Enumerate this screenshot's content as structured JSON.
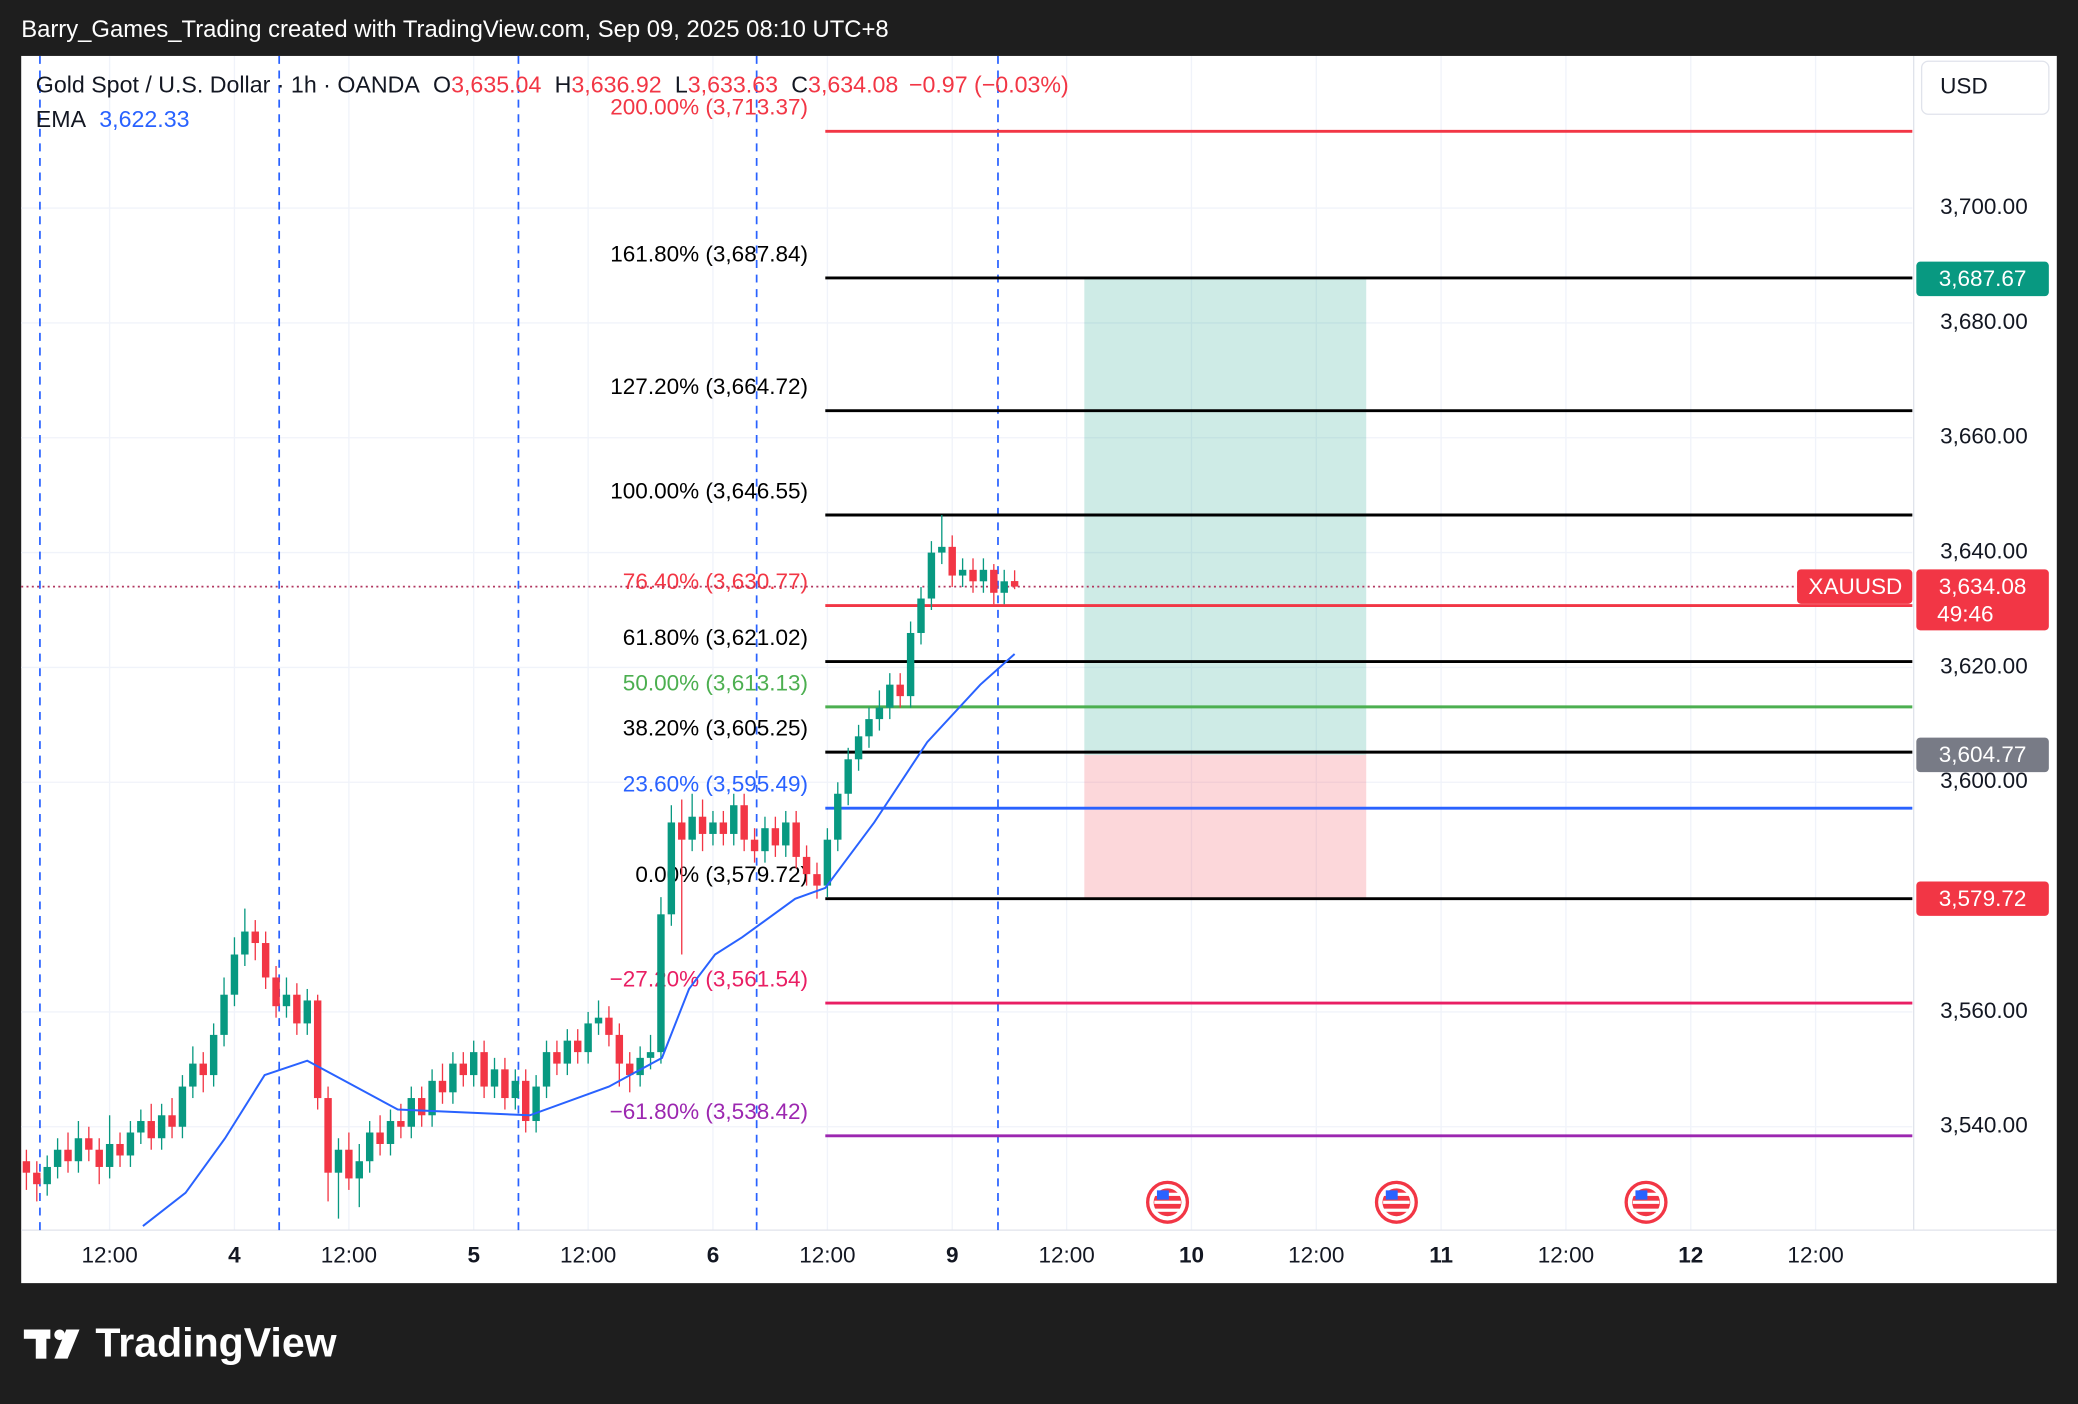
{
  "header": "Barry_Games_Trading created with TradingView.com, Sep 09, 2025 08:10 UTC+8",
  "footer": "TradingView",
  "chart_data": {
    "type": "candlestick",
    "currency": "USD",
    "legend": {
      "symbol": "Gold Spot / U.S. Dollar · 1h · OANDA",
      "fields": [
        {
          "key": "O",
          "value": "3,635.04"
        },
        {
          "key": "H",
          "value": "3,636.92"
        },
        {
          "key": "L",
          "value": "3,633.63"
        },
        {
          "key": "C",
          "value": "3,634.08"
        }
      ],
      "change": "−0.97 (−0.03%)",
      "ema_name": "EMA",
      "ema_value": "3,622.33"
    },
    "up_color": "#089981",
    "down_color": "#f23645",
    "open": [
      3534,
      3532,
      3530,
      3533,
      3536,
      3534,
      3538,
      3536,
      3533,
      3537,
      3535,
      3539,
      3541,
      3538,
      3542,
      3540,
      3547,
      3551,
      3549,
      3556,
      3563,
      3570,
      3574,
      3572,
      3566,
      3561,
      3563,
      3558,
      3562,
      3545,
      3532,
      3536,
      3531,
      3534,
      3539,
      3537,
      3541,
      3540,
      3545,
      3542,
      3548,
      3546,
      3551,
      3549,
      3553,
      3547,
      3550,
      3545,
      3548,
      3541,
      3547,
      3553,
      3551,
      3555,
      3553,
      3558,
      3559,
      3556,
      3551,
      3549,
      3552,
      3553,
      3577,
      3593,
      3590,
      3594,
      3591,
      3593,
      3591,
      3596,
      3590,
      3588,
      3592,
      3589,
      3593,
      3587,
      3584,
      3582,
      3590,
      3598,
      3604,
      3608,
      3611,
      3613,
      3617,
      3615,
      3626,
      3632,
      3640,
      3641,
      3636,
      3637,
      3635,
      3637,
      3633,
      3635.04
    ],
    "high": [
      3536,
      3534,
      3535,
      3538,
      3539,
      3541,
      3540,
      3538,
      3542,
      3539,
      3541,
      3543,
      3544,
      3544,
      3545,
      3549,
      3554,
      3553,
      3558,
      3566,
      3573,
      3578,
      3576,
      3574,
      3568,
      3566,
      3565,
      3564,
      3563,
      3547,
      3538,
      3539,
      3537,
      3541,
      3542,
      3543,
      3544,
      3547,
      3547,
      3550,
      3551,
      3553,
      3553,
      3555,
      3555,
      3552,
      3552,
      3550,
      3550,
      3549,
      3555,
      3555,
      3557,
      3557,
      3560,
      3562,
      3561,
      3558,
      3553,
      3554,
      3556,
      3580,
      3596,
      3597,
      3598,
      3597,
      3595,
      3595,
      3598,
      3598,
      3592,
      3594,
      3594,
      3595,
      3595,
      3589,
      3586,
      3592,
      3600,
      3606,
      3610,
      3613,
      3616,
      3619,
      3619,
      3628,
      3634,
      3642,
      3646.55,
      3643,
      3639,
      3639,
      3639,
      3638,
      3637,
      3636.92
    ],
    "low": [
      3529,
      3527,
      3528,
      3531,
      3532,
      3532,
      3534,
      3530,
      3531,
      3533,
      3533,
      3537,
      3536,
      3536,
      3538,
      3538,
      3545,
      3546,
      3547,
      3554,
      3561,
      3568,
      3569,
      3564,
      3559,
      3559,
      3556,
      3556,
      3543,
      3527,
      3524,
      3529,
      3526,
      3532,
      3535,
      3535,
      3538,
      3538,
      3540,
      3540,
      3544,
      3544,
      3547,
      3547,
      3545,
      3545,
      3543,
      3543,
      3539,
      3539,
      3545,
      3549,
      3549,
      3551,
      3551,
      3556,
      3554,
      3547,
      3546,
      3547,
      3550,
      3551,
      3575,
      3570,
      3588,
      3588,
      3589,
      3589,
      3589,
      3588,
      3586,
      3586,
      3587,
      3587,
      3585,
      3582,
      3579.72,
      3580,
      3588,
      3596,
      3602,
      3606,
      3609,
      3611,
      3613,
      3613,
      3624,
      3630,
      3638,
      3634,
      3634,
      3633,
      3633,
      3631,
      3631,
      3633.63
    ],
    "close": [
      3532,
      3530,
      3533,
      3536,
      3534,
      3538,
      3536,
      3533,
      3537,
      3535,
      3539,
      3541,
      3538,
      3542,
      3540,
      3547,
      3551,
      3549,
      3556,
      3563,
      3570,
      3574,
      3572,
      3566,
      3561,
      3563,
      3558,
      3562,
      3545,
      3532,
      3536,
      3531,
      3534,
      3539,
      3537,
      3541,
      3540,
      3545,
      3542,
      3548,
      3546,
      3551,
      3549,
      3553,
      3547,
      3550,
      3545,
      3548,
      3541,
      3547,
      3553,
      3551,
      3555,
      3553,
      3558,
      3559,
      3556,
      3551,
      3549,
      3552,
      3553,
      3577,
      3593,
      3590,
      3594,
      3591,
      3593,
      3591,
      3596,
      3590,
      3588,
      3592,
      3589,
      3593,
      3587,
      3584,
      3582,
      3590,
      3598,
      3604,
      3608,
      3611,
      3613,
      3617,
      3615,
      3626,
      3632,
      3640,
      3641,
      3636,
      3637,
      3635,
      3637,
      3633,
      3635,
      3634.08
    ],
    "ema": {
      "color": "#2962ff",
      "x": [
        11.2,
        15.3,
        19.1,
        22.9,
        27,
        30.6,
        35.7,
        48.4,
        56,
        61.1,
        63.7,
        66.2,
        68.8,
        73.9,
        76.8,
        81.5,
        86.6,
        91.7,
        95
      ],
      "values": [
        3522.7,
        3528.5,
        3538,
        3549,
        3551.5,
        3548,
        3543,
        3542,
        3547,
        3552,
        3564,
        3570,
        3573,
        3579.7,
        3581.6,
        3593,
        3607,
        3617,
        3622.33
      ]
    },
    "xlim": [
      -0.5,
      181.3
    ],
    "xticks": [
      {
        "value": 8,
        "label": "12:00"
      },
      {
        "value": 20,
        "label": "4"
      },
      {
        "value": 31,
        "label": "12:00"
      },
      {
        "value": 43,
        "label": "5"
      },
      {
        "value": 54,
        "label": "12:00"
      },
      {
        "value": 66,
        "label": "6"
      },
      {
        "value": 77,
        "label": "12:00"
      },
      {
        "value": 89,
        "label": "9"
      },
      {
        "value": 100,
        "label": "12:00"
      },
      {
        "value": 112,
        "label": "10"
      },
      {
        "value": 124,
        "label": "12:00"
      },
      {
        "value": 136,
        "label": "11"
      },
      {
        "value": 148,
        "label": "12:00"
      },
      {
        "value": 160,
        "label": "12"
      },
      {
        "value": 172,
        "label": "12:00"
      }
    ],
    "ylim": [
      3522,
      3726.5
    ],
    "yticks": [
      {
        "value": 3540,
        "label": "3,540.00"
      },
      {
        "value": 3560,
        "label": "3,560.00"
      },
      {
        "value": 3600,
        "label": "3,600.00"
      },
      {
        "value": 3620,
        "label": "3,620.00"
      },
      {
        "value": 3640,
        "label": "3,640.00"
      },
      {
        "value": 3660,
        "label": "3,660.00"
      },
      {
        "value": 3680,
        "label": "3,680.00"
      },
      {
        "value": 3700,
        "label": "3,700.00"
      }
    ],
    "grid": true,
    "session_lines": {
      "color": "#2962ff",
      "x": [
        1.3,
        24.3,
        47.3,
        70.2,
        93.4
      ]
    },
    "fib": {
      "x_start": 76.8,
      "levels": [
        {
          "label": "200.00% (3,713.37)",
          "value": 3713.37,
          "color": "#f23645"
        },
        {
          "label": "161.80% (3,687.84)",
          "value": 3687.84,
          "color": "#000000"
        },
        {
          "label": "127.20% (3,664.72)",
          "value": 3664.72,
          "color": "#000000"
        },
        {
          "label": "100.00% (3,646.55)",
          "value": 3646.55,
          "color": "#000000"
        },
        {
          "label": "76.40% (3,630.77)",
          "value": 3630.77,
          "color": "#f23645"
        },
        {
          "label": "61.80% (3,621.02)",
          "value": 3621.02,
          "color": "#000000"
        },
        {
          "label": "50.00% (3,613.13)",
          "value": 3613.13,
          "color": "#4caf50"
        },
        {
          "label": "38.20% (3,605.25)",
          "value": 3605.25,
          "color": "#000000"
        },
        {
          "label": "23.60% (3,595.49)",
          "value": 3595.49,
          "color": "#2962ff"
        },
        {
          "label": "0.00% (3,579.72)",
          "value": 3579.72,
          "color": "#000000"
        },
        {
          "label": "−27.20% (3,561.54)",
          "value": 3561.54,
          "color": "#e91e63"
        },
        {
          "label": "−61.80% (3,538.42)",
          "value": 3538.42,
          "color": "#9c27b0"
        }
      ]
    },
    "position": {
      "x": [
        101.7,
        128.8
      ],
      "entry": 3604.77,
      "target": 3687.67,
      "stop": 3579.72
    },
    "badges": [
      {
        "value": 3687.67,
        "label": "3,687.67",
        "color": "#089981"
      },
      {
        "value": 3604.77,
        "label": "3,604.77",
        "color": "#787b86"
      },
      {
        "value": 3579.72,
        "label": "3,579.72",
        "color": "#f23645"
      }
    ],
    "current": {
      "symbol": "XAUUSD",
      "value": 3634.08,
      "label": "3,634.08",
      "countdown": "49:46",
      "color": "#f23645"
    },
    "events_x": [
      109.7,
      131.7,
      155.7
    ]
  }
}
